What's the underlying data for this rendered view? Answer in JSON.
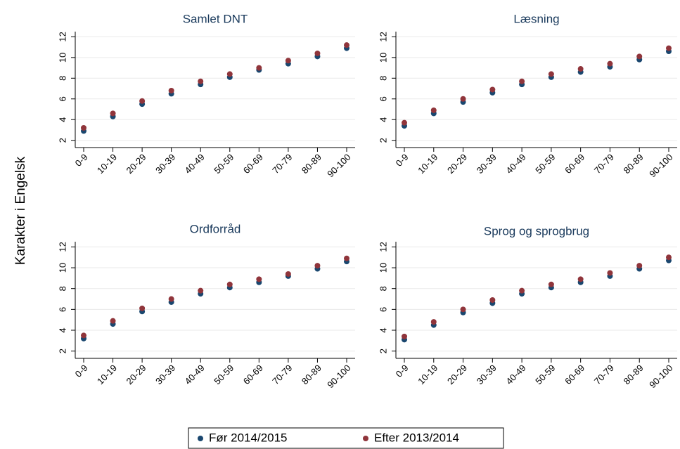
{
  "ylabel": "Karakter i Engelsk",
  "chart_data": [
    {
      "type": "scatter",
      "title": "Samlet DNT",
      "categories": [
        "0-9",
        "10-19",
        "20-29",
        "30-39",
        "40-49",
        "50-59",
        "60-69",
        "70-79",
        "80-89",
        "90-100"
      ],
      "series": [
        {
          "name": "Før 2014/2015",
          "color": "#1a476f",
          "values": [
            2.9,
            4.3,
            5.5,
            6.5,
            7.4,
            8.1,
            8.8,
            9.4,
            10.1,
            10.9
          ]
        },
        {
          "name": "Efter 2013/2014",
          "color": "#90353b",
          "values": [
            3.2,
            4.6,
            5.8,
            6.8,
            7.7,
            8.4,
            9.0,
            9.7,
            10.4,
            11.2
          ]
        }
      ],
      "ylim": [
        1.3,
        12.5
      ],
      "yticks": [
        2,
        4,
        6,
        8,
        10,
        12
      ],
      "grid": true
    },
    {
      "type": "scatter",
      "title": "Læsning",
      "categories": [
        "0-9",
        "10-19",
        "20-29",
        "30-39",
        "40-49",
        "50-59",
        "60-69",
        "70-79",
        "80-89",
        "90-100"
      ],
      "series": [
        {
          "name": "Før 2014/2015",
          "color": "#1a476f",
          "values": [
            3.4,
            4.6,
            5.7,
            6.6,
            7.4,
            8.1,
            8.6,
            9.1,
            9.8,
            10.6
          ]
        },
        {
          "name": "Efter 2013/2014",
          "color": "#90353b",
          "values": [
            3.7,
            4.9,
            6.0,
            6.9,
            7.7,
            8.4,
            8.9,
            9.4,
            10.1,
            10.9
          ]
        }
      ],
      "ylim": [
        1.3,
        12.5
      ],
      "yticks": [
        2,
        4,
        6,
        8,
        10,
        12
      ],
      "grid": true
    },
    {
      "type": "scatter",
      "title": "Ordforråd",
      "categories": [
        "0-9",
        "10-19",
        "20-29",
        "30-39",
        "40-49",
        "50-59",
        "60-69",
        "70-79",
        "80-89",
        "90-100"
      ],
      "series": [
        {
          "name": "Før 2014/2015",
          "color": "#1a476f",
          "values": [
            3.2,
            4.6,
            5.8,
            6.7,
            7.5,
            8.1,
            8.6,
            9.2,
            9.9,
            10.6
          ]
        },
        {
          "name": "Efter 2013/2014",
          "color": "#90353b",
          "values": [
            3.5,
            4.9,
            6.1,
            7.0,
            7.8,
            8.4,
            8.9,
            9.4,
            10.2,
            10.9
          ]
        }
      ],
      "ylim": [
        1.3,
        12.5
      ],
      "yticks": [
        2,
        4,
        6,
        8,
        10,
        12
      ],
      "grid": true
    },
    {
      "type": "scatter",
      "title": "Sprog og sprogbrug",
      "categories": [
        "0-9",
        "10-19",
        "20-29",
        "30-39",
        "40-49",
        "50-59",
        "60-69",
        "70-79",
        "80-89",
        "90-100"
      ],
      "series": [
        {
          "name": "Før 2014/2015",
          "color": "#1a476f",
          "values": [
            3.1,
            4.5,
            5.7,
            6.6,
            7.5,
            8.1,
            8.6,
            9.2,
            9.9,
            10.7
          ]
        },
        {
          "name": "Efter 2013/2014",
          "color": "#90353b",
          "values": [
            3.4,
            4.8,
            6.0,
            6.9,
            7.8,
            8.4,
            8.9,
            9.5,
            10.2,
            11.0
          ]
        }
      ],
      "ylim": [
        1.3,
        12.5
      ],
      "yticks": [
        2,
        4,
        6,
        8,
        10,
        12
      ],
      "grid": true
    }
  ]
}
